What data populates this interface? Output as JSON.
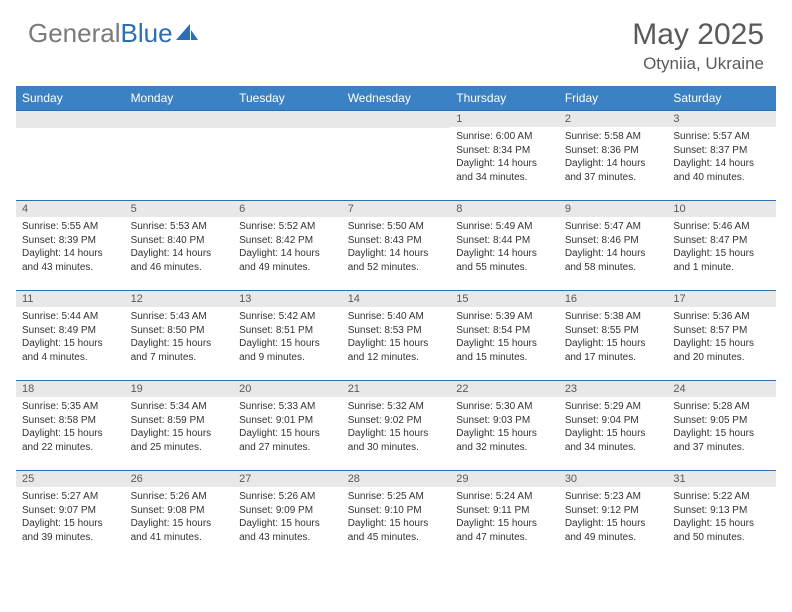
{
  "brand": {
    "part1": "General",
    "part2": "Blue"
  },
  "title": "May 2025",
  "location": "Otyniia, Ukraine",
  "colors": {
    "header_bg": "#3b82c4",
    "header_text": "#ffffff",
    "border": "#2d6fb5",
    "daynum_bg": "#e8e8e8",
    "daynum_text": "#595959",
    "body_text": "#333333",
    "title_text": "#5a5a5a",
    "logo_gray": "#7a7a7a",
    "logo_blue": "#2d6fb5"
  },
  "dayNames": [
    "Sunday",
    "Monday",
    "Tuesday",
    "Wednesday",
    "Thursday",
    "Friday",
    "Saturday"
  ],
  "weeks": [
    [
      {
        "n": "",
        "lines": []
      },
      {
        "n": "",
        "lines": []
      },
      {
        "n": "",
        "lines": []
      },
      {
        "n": "",
        "lines": []
      },
      {
        "n": "1",
        "lines": [
          "Sunrise: 6:00 AM",
          "Sunset: 8:34 PM",
          "Daylight: 14 hours and 34 minutes."
        ]
      },
      {
        "n": "2",
        "lines": [
          "Sunrise: 5:58 AM",
          "Sunset: 8:36 PM",
          "Daylight: 14 hours and 37 minutes."
        ]
      },
      {
        "n": "3",
        "lines": [
          "Sunrise: 5:57 AM",
          "Sunset: 8:37 PM",
          "Daylight: 14 hours and 40 minutes."
        ]
      }
    ],
    [
      {
        "n": "4",
        "lines": [
          "Sunrise: 5:55 AM",
          "Sunset: 8:39 PM",
          "Daylight: 14 hours and 43 minutes."
        ]
      },
      {
        "n": "5",
        "lines": [
          "Sunrise: 5:53 AM",
          "Sunset: 8:40 PM",
          "Daylight: 14 hours and 46 minutes."
        ]
      },
      {
        "n": "6",
        "lines": [
          "Sunrise: 5:52 AM",
          "Sunset: 8:42 PM",
          "Daylight: 14 hours and 49 minutes."
        ]
      },
      {
        "n": "7",
        "lines": [
          "Sunrise: 5:50 AM",
          "Sunset: 8:43 PM",
          "Daylight: 14 hours and 52 minutes."
        ]
      },
      {
        "n": "8",
        "lines": [
          "Sunrise: 5:49 AM",
          "Sunset: 8:44 PM",
          "Daylight: 14 hours and 55 minutes."
        ]
      },
      {
        "n": "9",
        "lines": [
          "Sunrise: 5:47 AM",
          "Sunset: 8:46 PM",
          "Daylight: 14 hours and 58 minutes."
        ]
      },
      {
        "n": "10",
        "lines": [
          "Sunrise: 5:46 AM",
          "Sunset: 8:47 PM",
          "Daylight: 15 hours and 1 minute."
        ]
      }
    ],
    [
      {
        "n": "11",
        "lines": [
          "Sunrise: 5:44 AM",
          "Sunset: 8:49 PM",
          "Daylight: 15 hours and 4 minutes."
        ]
      },
      {
        "n": "12",
        "lines": [
          "Sunrise: 5:43 AM",
          "Sunset: 8:50 PM",
          "Daylight: 15 hours and 7 minutes."
        ]
      },
      {
        "n": "13",
        "lines": [
          "Sunrise: 5:42 AM",
          "Sunset: 8:51 PM",
          "Daylight: 15 hours and 9 minutes."
        ]
      },
      {
        "n": "14",
        "lines": [
          "Sunrise: 5:40 AM",
          "Sunset: 8:53 PM",
          "Daylight: 15 hours and 12 minutes."
        ]
      },
      {
        "n": "15",
        "lines": [
          "Sunrise: 5:39 AM",
          "Sunset: 8:54 PM",
          "Daylight: 15 hours and 15 minutes."
        ]
      },
      {
        "n": "16",
        "lines": [
          "Sunrise: 5:38 AM",
          "Sunset: 8:55 PM",
          "Daylight: 15 hours and 17 minutes."
        ]
      },
      {
        "n": "17",
        "lines": [
          "Sunrise: 5:36 AM",
          "Sunset: 8:57 PM",
          "Daylight: 15 hours and 20 minutes."
        ]
      }
    ],
    [
      {
        "n": "18",
        "lines": [
          "Sunrise: 5:35 AM",
          "Sunset: 8:58 PM",
          "Daylight: 15 hours and 22 minutes."
        ]
      },
      {
        "n": "19",
        "lines": [
          "Sunrise: 5:34 AM",
          "Sunset: 8:59 PM",
          "Daylight: 15 hours and 25 minutes."
        ]
      },
      {
        "n": "20",
        "lines": [
          "Sunrise: 5:33 AM",
          "Sunset: 9:01 PM",
          "Daylight: 15 hours and 27 minutes."
        ]
      },
      {
        "n": "21",
        "lines": [
          "Sunrise: 5:32 AM",
          "Sunset: 9:02 PM",
          "Daylight: 15 hours and 30 minutes."
        ]
      },
      {
        "n": "22",
        "lines": [
          "Sunrise: 5:30 AM",
          "Sunset: 9:03 PM",
          "Daylight: 15 hours and 32 minutes."
        ]
      },
      {
        "n": "23",
        "lines": [
          "Sunrise: 5:29 AM",
          "Sunset: 9:04 PM",
          "Daylight: 15 hours and 34 minutes."
        ]
      },
      {
        "n": "24",
        "lines": [
          "Sunrise: 5:28 AM",
          "Sunset: 9:05 PM",
          "Daylight: 15 hours and 37 minutes."
        ]
      }
    ],
    [
      {
        "n": "25",
        "lines": [
          "Sunrise: 5:27 AM",
          "Sunset: 9:07 PM",
          "Daylight: 15 hours and 39 minutes."
        ]
      },
      {
        "n": "26",
        "lines": [
          "Sunrise: 5:26 AM",
          "Sunset: 9:08 PM",
          "Daylight: 15 hours and 41 minutes."
        ]
      },
      {
        "n": "27",
        "lines": [
          "Sunrise: 5:26 AM",
          "Sunset: 9:09 PM",
          "Daylight: 15 hours and 43 minutes."
        ]
      },
      {
        "n": "28",
        "lines": [
          "Sunrise: 5:25 AM",
          "Sunset: 9:10 PM",
          "Daylight: 15 hours and 45 minutes."
        ]
      },
      {
        "n": "29",
        "lines": [
          "Sunrise: 5:24 AM",
          "Sunset: 9:11 PM",
          "Daylight: 15 hours and 47 minutes."
        ]
      },
      {
        "n": "30",
        "lines": [
          "Sunrise: 5:23 AM",
          "Sunset: 9:12 PM",
          "Daylight: 15 hours and 49 minutes."
        ]
      },
      {
        "n": "31",
        "lines": [
          "Sunrise: 5:22 AM",
          "Sunset: 9:13 PM",
          "Daylight: 15 hours and 50 minutes."
        ]
      }
    ]
  ]
}
